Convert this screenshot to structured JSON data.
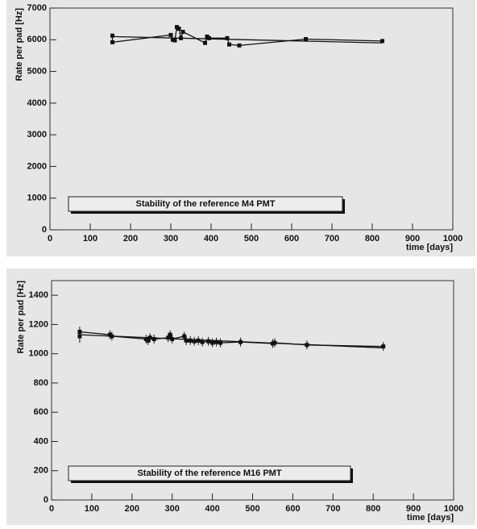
{
  "chart_data": [
    {
      "type": "line",
      "title": "Stability of the reference M4 PMT",
      "xlabel": "time [days]",
      "ylabel": "Rate per pad [Hz]",
      "xlim": [
        0,
        1000
      ],
      "xticks": [
        0,
        100,
        200,
        300,
        400,
        500,
        600,
        700,
        800,
        900,
        1000
      ],
      "ylim": [
        0,
        7000
      ],
      "yticks": [
        0,
        1000,
        2000,
        3000,
        4000,
        5000,
        6000,
        7000
      ],
      "series": [
        {
          "color": "#111111",
          "marker": "square",
          "x": [
            155,
            155,
            300,
            305,
            310,
            315,
            320,
            325,
            330,
            385,
            390,
            395,
            440,
            445,
            470,
            635,
            825
          ],
          "values": [
            6130,
            5920,
            6150,
            6000,
            5980,
            6400,
            6350,
            6050,
            6250,
            5900,
            6100,
            6050,
            6050,
            5850,
            5820,
            6020,
            5960
          ]
        },
        {
          "color": "#111111",
          "x": [
            155,
            825
          ],
          "values": [
            6100,
            5900
          ]
        }
      ]
    },
    {
      "type": "line",
      "title": "Stability of the reference M16 PMT",
      "xlabel": "time [days]",
      "ylabel": "Rate per pad [Hz]",
      "xlim": [
        0,
        1000
      ],
      "xticks": [
        0,
        100,
        200,
        300,
        400,
        500,
        600,
        700,
        800,
        900,
        1000
      ],
      "ylim": [
        0,
        1500
      ],
      "yticks": [
        0,
        200,
        400,
        600,
        800,
        1000,
        1200,
        1400
      ],
      "series": [
        {
          "color": "#111111",
          "marker": "square",
          "x": [
            70,
            70,
            145,
            150,
            235,
            240,
            245,
            255,
            290,
            295,
            300,
            330,
            335,
            345,
            355,
            365,
            375,
            390,
            400,
            410,
            420,
            470,
            550,
            555,
            635,
            825
          ],
          "values": [
            1120,
            1150,
            1130,
            1120,
            1100,
            1090,
            1110,
            1100,
            1110,
            1130,
            1100,
            1120,
            1090,
            1090,
            1085,
            1090,
            1080,
            1085,
            1075,
            1080,
            1075,
            1080,
            1070,
            1075,
            1060,
            1050
          ],
          "errors": [
            45,
            35,
            30,
            30,
            30,
            30,
            30,
            30,
            30,
            30,
            30,
            30,
            30,
            30,
            30,
            30,
            30,
            30,
            30,
            30,
            30,
            30,
            30,
            30,
            30,
            30
          ]
        },
        {
          "color": "#111111",
          "x": [
            70,
            825
          ],
          "values": [
            1130,
            1040
          ]
        }
      ]
    }
  ]
}
